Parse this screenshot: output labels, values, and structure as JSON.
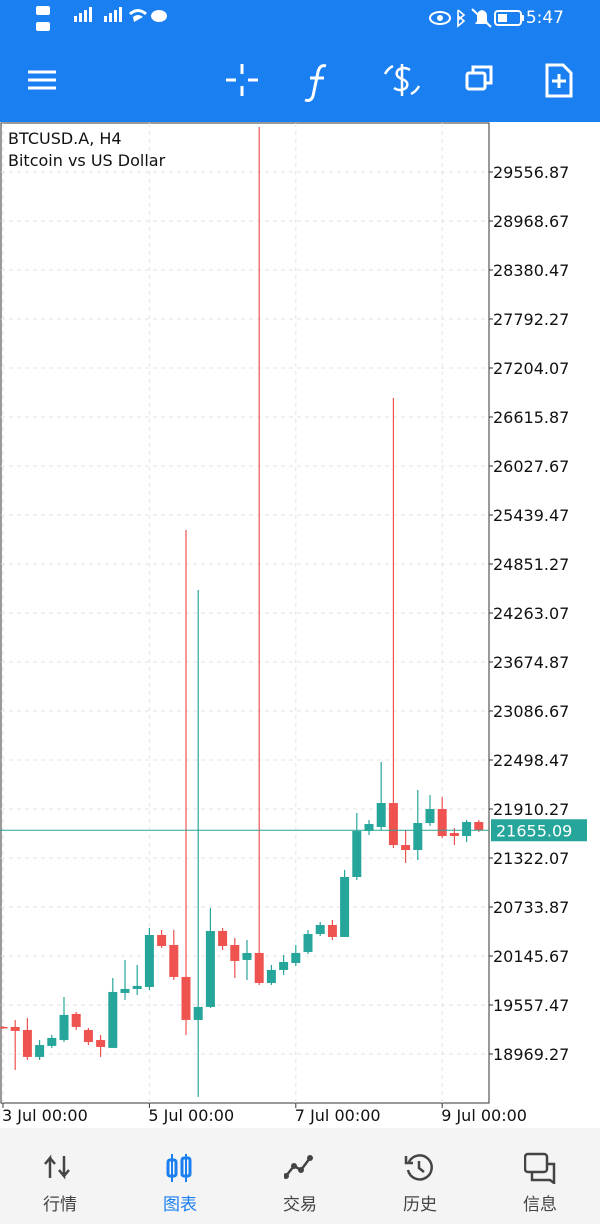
{
  "status_bar": {
    "time": "5:47"
  },
  "chart_data": {
    "type": "candlestick",
    "symbol": "BTCUSD.A, H4",
    "description": "Bitcoin vs US Dollar",
    "categories": [
      "3 Jul 00:00",
      null,
      null,
      null,
      null,
      null,
      null,
      null,
      null,
      null,
      null,
      null,
      "5 Jul 00:00",
      null,
      null,
      null,
      null,
      null,
      null,
      null,
      null,
      null,
      null,
      null,
      "7 Jul 00:00",
      null,
      null,
      null,
      null,
      null,
      null,
      null,
      null,
      null,
      null,
      null,
      "9 Jul 00:00",
      null,
      null,
      null
    ],
    "open": [
      19294,
      19294,
      19258,
      18934,
      19066,
      19137,
      19450,
      19258,
      19137,
      19042,
      19702,
      19750,
      19774,
      20398,
      20278,
      19894,
      19378,
      19534,
      20446,
      20278,
      20098,
      20182,
      19822,
      19978,
      20062,
      20194,
      20410,
      20518,
      20374,
      21094,
      21646,
      21694,
      21982,
      21478,
      21418,
      21742,
      21910,
      21622,
      21586,
      21754
    ],
    "high": [
      19306,
      19378,
      19402,
      19137,
      19198,
      19654,
      19474,
      19282,
      19198,
      19882,
      20098,
      20038,
      20482,
      20458,
      20458,
      25259,
      24539,
      20722,
      20482,
      20362,
      20338,
      30097,
      20038,
      20158,
      20278,
      20458,
      20554,
      20578,
      21178,
      21862,
      21778,
      22475,
      26844,
      21658,
      22138,
      22078,
      22054,
      21682,
      21778,
      21778
    ],
    "low": [
      19270,
      18778,
      18898,
      18898,
      19042,
      19113,
      19258,
      19077,
      18934,
      19042,
      19618,
      19678,
      19738,
      20242,
      19858,
      19198,
      18454,
      19522,
      20218,
      19882,
      19858,
      19798,
      19798,
      19918,
      20026,
      20170,
      20386,
      20338,
      20374,
      21058,
      21598,
      21658,
      21442,
      21262,
      21298,
      21706,
      21562,
      21478,
      21514,
      21634
    ],
    "close": [
      19282,
      19246,
      18934,
      19077,
      19162,
      19438,
      19294,
      19113,
      19054,
      19714,
      19750,
      19786,
      20398,
      20266,
      19894,
      19378,
      19534,
      20446,
      20266,
      20086,
      20182,
      19822,
      19978,
      20074,
      20182,
      20410,
      20518,
      20374,
      21094,
      21646,
      21730,
      21982,
      21478,
      21418,
      21742,
      21910,
      21586,
      21586,
      21754,
      21655.09
    ],
    "up_color": "#26a69a",
    "down_color": "#ef5350",
    "last_price": 21655.09,
    "ylim": [
      18381.07,
      30145.07
    ],
    "yticks": [
      18969.27,
      19557.47,
      20145.67,
      20733.87,
      21322.07,
      21910.27,
      22498.47,
      23086.67,
      23674.87,
      24263.07,
      24851.27,
      25439.47,
      26027.67,
      26615.87,
      27204.07,
      27792.27,
      28380.47,
      28968.67,
      29556.87
    ],
    "grid": true
  },
  "bottom_nav": [
    {
      "label": "行情",
      "active": false
    },
    {
      "label": "图表",
      "active": true
    },
    {
      "label": "交易",
      "active": false
    },
    {
      "label": "历史",
      "active": false
    },
    {
      "label": "信息",
      "active": false
    }
  ]
}
